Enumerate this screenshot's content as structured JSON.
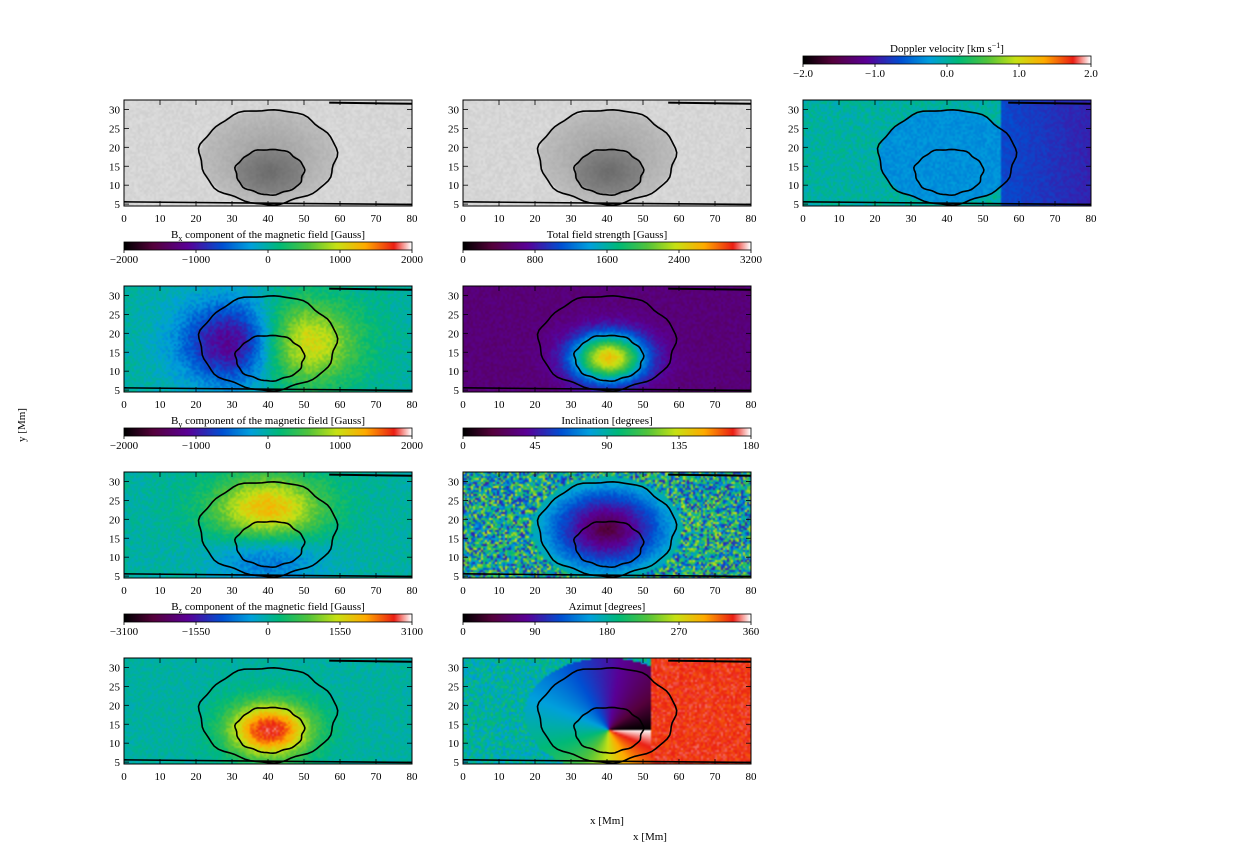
{
  "figure": {
    "y_label": "y [Mm]",
    "x_label_1": "x [Mm]",
    "x_label_2": "x [Mm]"
  },
  "colors": {
    "contour": "#000000",
    "frame": "#000000"
  },
  "chart_data": [
    {
      "type": "heatmap",
      "id": "continuum",
      "title": "",
      "colorbar": null,
      "xlim": [
        0,
        80
      ],
      "ylim": [
        4.5,
        32.5
      ],
      "xticks": [
        "0",
        "10",
        "20",
        "30",
        "40",
        "50",
        "60",
        "70",
        "80"
      ],
      "yticks": [
        "5",
        "10",
        "15",
        "20",
        "25",
        "30"
      ],
      "colormap": "gray",
      "field": "intensity"
    },
    {
      "type": "heatmap",
      "id": "line-core",
      "title": "",
      "colorbar": null,
      "xlim": [
        0,
        80
      ],
      "ylim": [
        4.5,
        32.5
      ],
      "xticks": [
        "0",
        "10",
        "20",
        "30",
        "40",
        "50",
        "60",
        "70",
        "80"
      ],
      "yticks": [
        "5",
        "10",
        "15",
        "20",
        "25",
        "30"
      ],
      "colormap": "gray",
      "field": "intensity"
    },
    {
      "type": "heatmap",
      "id": "doppler",
      "title": "Doppler velocity [km s",
      "title_sup": "−1",
      "title_end": "]",
      "colorbar": {
        "min": -2.0,
        "max": 2.0,
        "ticks": [
          "−2.0",
          "−1.0",
          "0.0",
          "1.0",
          "2.0"
        ]
      },
      "xlim": [
        0,
        80
      ],
      "ylim": [
        4.5,
        32.5
      ],
      "xticks": [
        "0",
        "10",
        "20",
        "30",
        "40",
        "50",
        "60",
        "70",
        "80"
      ],
      "yticks": [
        "5",
        "10",
        "15",
        "20",
        "25",
        "30"
      ],
      "colormap": "rainbow",
      "field": "doppler"
    },
    {
      "type": "heatmap",
      "id": "bx",
      "title": "B",
      "title_sub": "x",
      "title_end": " component of the magnetic field [Gauss]",
      "colorbar": {
        "min": -2000,
        "max": 2000,
        "ticks": [
          "−2000",
          "−1000",
          "0",
          "1000",
          "2000"
        ]
      },
      "xlim": [
        0,
        80
      ],
      "ylim": [
        4.5,
        32.5
      ],
      "xticks": [
        "0",
        "10",
        "20",
        "30",
        "40",
        "50",
        "60",
        "70",
        "80"
      ],
      "yticks": [
        "5",
        "10",
        "15",
        "20",
        "25",
        "30"
      ],
      "colormap": "rainbow",
      "field": "bx"
    },
    {
      "type": "heatmap",
      "id": "total-field",
      "title": "Total field strength [Gauss]",
      "colorbar": {
        "min": 0,
        "max": 3200,
        "ticks": [
          "0",
          "800",
          "1600",
          "2400",
          "3200"
        ]
      },
      "xlim": [
        0,
        80
      ],
      "ylim": [
        4.5,
        32.5
      ],
      "xticks": [
        "0",
        "10",
        "20",
        "30",
        "40",
        "50",
        "60",
        "70",
        "80"
      ],
      "yticks": [
        "5",
        "10",
        "15",
        "20",
        "25",
        "30"
      ],
      "colormap": "rainbow",
      "field": "btot"
    },
    {
      "type": "heatmap",
      "id": "by",
      "title": "B",
      "title_sub": "y",
      "title_end": " component of the magnetic field [Gauss]",
      "colorbar": {
        "min": -2000,
        "max": 2000,
        "ticks": [
          "−2000",
          "−1000",
          "0",
          "1000",
          "2000"
        ]
      },
      "xlim": [
        0,
        80
      ],
      "ylim": [
        4.5,
        32.5
      ],
      "xticks": [
        "0",
        "10",
        "20",
        "30",
        "40",
        "50",
        "60",
        "70",
        "80"
      ],
      "yticks": [
        "5",
        "10",
        "15",
        "20",
        "25",
        "30"
      ],
      "colormap": "rainbow",
      "field": "by"
    },
    {
      "type": "heatmap",
      "id": "inclination",
      "title": "Inclination [degrees]",
      "colorbar": {
        "min": 0,
        "max": 180,
        "ticks": [
          "0",
          "45",
          "90",
          "135",
          "180"
        ]
      },
      "xlim": [
        0,
        80
      ],
      "ylim": [
        4.5,
        32.5
      ],
      "xticks": [
        "0",
        "10",
        "20",
        "30",
        "40",
        "50",
        "60",
        "70",
        "80"
      ],
      "yticks": [
        "5",
        "10",
        "15",
        "20",
        "25",
        "30"
      ],
      "colormap": "rainbow",
      "field": "incl"
    },
    {
      "type": "heatmap",
      "id": "bz",
      "title": "B",
      "title_sub": "z",
      "title_end": " component of the magnetic field [Gauss]",
      "colorbar": {
        "min": -3100,
        "max": 3100,
        "ticks": [
          "−3100",
          "−1550",
          "0",
          "1550",
          "3100"
        ]
      },
      "xlim": [
        0,
        80
      ],
      "ylim": [
        4.5,
        32.5
      ],
      "xticks": [
        "0",
        "10",
        "20",
        "30",
        "40",
        "50",
        "60",
        "70",
        "80"
      ],
      "yticks": [
        "5",
        "10",
        "15",
        "20",
        "25",
        "30"
      ],
      "colormap": "rainbow",
      "field": "bz"
    },
    {
      "type": "heatmap",
      "id": "azimuth",
      "title": "Azimut [degrees]",
      "colorbar": {
        "min": 0,
        "max": 360,
        "ticks": [
          "0",
          "90",
          "180",
          "270",
          "360"
        ]
      },
      "xlim": [
        0,
        80
      ],
      "ylim": [
        4.5,
        32.5
      ],
      "xticks": [
        "0",
        "10",
        "20",
        "30",
        "40",
        "50",
        "60",
        "70",
        "80"
      ],
      "yticks": [
        "5",
        "10",
        "15",
        "20",
        "25",
        "30"
      ],
      "colormap": "rainbow",
      "field": "azim"
    }
  ],
  "contours": {
    "umbra": {
      "cx": 40.5,
      "cy": 13.5,
      "rx": 9.5,
      "ry": 6
    },
    "penumbra": {
      "cx": 40,
      "cy": 17.5,
      "rx": 19,
      "ry": 12.5
    }
  }
}
